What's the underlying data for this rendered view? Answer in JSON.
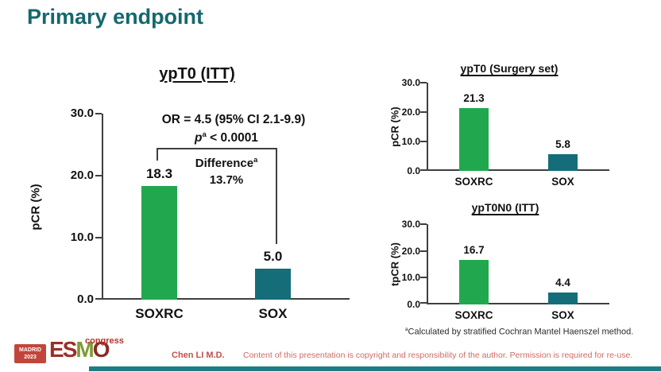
{
  "slide": {
    "title": "Primary endpoint",
    "presenter": "Chen LI M.D.",
    "copyright": "Content of this presentation is copyright and responsibility of the author. Permission is required for re-use.",
    "footnote": {
      "sup": "a",
      "text": "Calculated by stratified Cochran Mantel Haenszel method."
    }
  },
  "logo": {
    "city": "MADRID",
    "year": "2023",
    "letters": [
      "E",
      "S",
      "M",
      "O"
    ],
    "event": "congress"
  },
  "colors": {
    "title_teal": "#15686d",
    "bar_green": "#21a84e",
    "bar_teal": "#156d79",
    "footer_bar": "#1f7c84",
    "axis": "#3f3f3f",
    "presenter_red": "#c0504d",
    "copyright_red": "#cf6b66"
  },
  "chart_data": [
    {
      "type": "bar",
      "title": "ypT0 (ITT)",
      "ylabel": "pCR (%)",
      "ylim": [
        0,
        30
      ],
      "yticks": [
        "30.0",
        "20.0",
        "10.0",
        "0.0"
      ],
      "categories": [
        "SOXRC",
        "SOX"
      ],
      "values": [
        18.3,
        5.0
      ],
      "value_labels": [
        "18.3",
        "5.0"
      ],
      "annotations": {
        "or_text": "OR = 4.5 (95% CI 2.1-9.9)",
        "p": {
          "symbol": "p",
          "sup": "a",
          "rest": " < 0.0001"
        },
        "difference": {
          "label": "Difference",
          "sup": "a",
          "value": "13.7%"
        }
      }
    },
    {
      "type": "bar",
      "title": "ypT0 (Surgery set)",
      "ylabel": "pCR (%)",
      "ylim": [
        0,
        30
      ],
      "yticks": [
        "30.0",
        "20.0",
        "10.0",
        "0.0"
      ],
      "categories": [
        "SOXRC",
        "SOX"
      ],
      "values": [
        21.3,
        5.8
      ],
      "value_labels": [
        "21.3",
        "5.8"
      ]
    },
    {
      "type": "bar",
      "title": "ypT0N0 (ITT)",
      "ylabel": "tpCR (%)",
      "ylim": [
        0,
        30
      ],
      "yticks": [
        "30.0",
        "20.0",
        "10.0",
        "0.0"
      ],
      "categories": [
        "SOXRC",
        "SOX"
      ],
      "values": [
        16.7,
        4.4
      ],
      "value_labels": [
        "16.7",
        "4.4"
      ]
    }
  ]
}
